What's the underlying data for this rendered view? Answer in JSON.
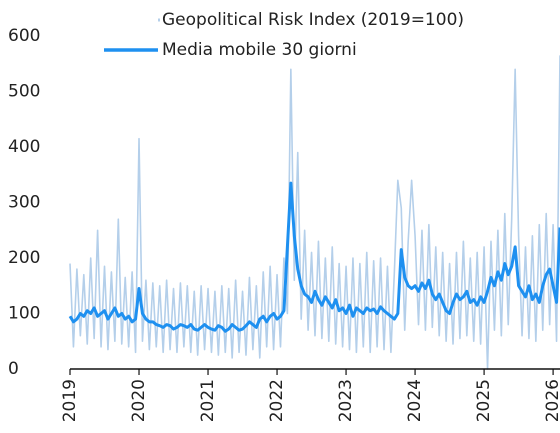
{
  "chart_data": {
    "type": "line",
    "x": [
      2019.0,
      2019.05,
      2019.1,
      2019.15,
      2019.2,
      2019.25,
      2019.3,
      2019.35,
      2019.4,
      2019.45,
      2019.5,
      2019.55,
      2019.6,
      2019.65,
      2019.7,
      2019.75,
      2019.8,
      2019.85,
      2019.9,
      2019.95,
      2020.0,
      2020.05,
      2020.1,
      2020.15,
      2020.2,
      2020.25,
      2020.3,
      2020.35,
      2020.4,
      2020.45,
      2020.5,
      2020.55,
      2020.6,
      2020.65,
      2020.7,
      2020.75,
      2020.8,
      2020.85,
      2020.9,
      2020.95,
      2021.0,
      2021.05,
      2021.1,
      2021.15,
      2021.2,
      2021.25,
      2021.3,
      2021.35,
      2021.4,
      2021.45,
      2021.5,
      2021.55,
      2021.6,
      2021.65,
      2021.7,
      2021.75,
      2021.8,
      2021.85,
      2021.9,
      2021.95,
      2022.0,
      2022.05,
      2022.1,
      2022.15,
      2022.2,
      2022.25,
      2022.3,
      2022.35,
      2022.4,
      2022.45,
      2022.5,
      2022.55,
      2022.6,
      2022.65,
      2022.7,
      2022.75,
      2022.8,
      2022.85,
      2022.9,
      2022.95,
      2023.0,
      2023.05,
      2023.1,
      2023.15,
      2023.2,
      2023.25,
      2023.3,
      2023.35,
      2023.4,
      2023.45,
      2023.5,
      2023.55,
      2023.6,
      2023.65,
      2023.7,
      2023.75,
      2023.8,
      2023.85,
      2023.9,
      2023.95,
      2024.0,
      2024.05,
      2024.1,
      2024.15,
      2024.2,
      2024.25,
      2024.3,
      2024.35,
      2024.4,
      2024.45,
      2024.5,
      2024.55,
      2024.6,
      2024.65,
      2024.7,
      2024.75,
      2024.8,
      2024.85,
      2024.9,
      2024.95,
      2025.0,
      2025.05,
      2025.1,
      2025.15,
      2025.2,
      2025.25,
      2025.3,
      2025.35,
      2025.4,
      2025.45,
      2025.5,
      2025.55,
      2025.6,
      2025.65,
      2025.7,
      2025.75,
      2025.8,
      2025.85,
      2025.9,
      2025.95,
      2026.0,
      2026.05,
      2026.1
    ],
    "series": [
      {
        "name": "Geopolitical Risk Index (2019=100)",
        "color": "#b4cfea",
        "values": [
          190,
          40,
          180,
          60,
          170,
          45,
          200,
          55,
          250,
          40,
          185,
          35,
          175,
          50,
          270,
          45,
          165,
          40,
          175,
          30,
          415,
          50,
          160,
          35,
          155,
          40,
          150,
          30,
          160,
          35,
          145,
          30,
          155,
          40,
          150,
          30,
          140,
          25,
          150,
          35,
          145,
          30,
          140,
          25,
          150,
          30,
          145,
          20,
          160,
          30,
          140,
          25,
          165,
          35,
          150,
          20,
          175,
          40,
          185,
          35,
          170,
          40,
          200,
          100,
          540,
          160,
          390,
          90,
          250,
          70,
          210,
          60,
          230,
          55,
          200,
          50,
          220,
          45,
          190,
          40,
          185,
          35,
          200,
          30,
          190,
          40,
          210,
          30,
          195,
          40,
          200,
          35,
          185,
          30,
          175,
          340,
          290,
          70,
          230,
          340,
          240,
          80,
          250,
          70,
          260,
          75,
          220,
          60,
          210,
          50,
          190,
          45,
          210,
          55,
          230,
          60,
          200,
          50,
          210,
          45,
          220,
          0,
          230,
          70,
          250,
          60,
          280,
          80,
          270,
          540,
          240,
          60,
          220,
          55,
          240,
          50,
          260,
          70,
          280,
          80,
          260,
          50,
          565
        ]
      },
      {
        "name": "Media mobile 30 giorni",
        "color": "#1e90f0",
        "values": [
          95,
          85,
          90,
          100,
          95,
          105,
          100,
          110,
          95,
          100,
          105,
          90,
          100,
          110,
          95,
          100,
          90,
          95,
          85,
          90,
          145,
          100,
          90,
          85,
          85,
          80,
          78,
          75,
          80,
          78,
          72,
          75,
          80,
          78,
          75,
          80,
          72,
          70,
          75,
          80,
          75,
          72,
          70,
          78,
          75,
          68,
          72,
          80,
          75,
          70,
          72,
          78,
          85,
          80,
          75,
          90,
          95,
          85,
          95,
          100,
          90,
          95,
          105,
          220,
          335,
          240,
          180,
          150,
          135,
          130,
          120,
          140,
          125,
          115,
          130,
          120,
          110,
          125,
          105,
          110,
          100,
          115,
          95,
          110,
          105,
          100,
          110,
          105,
          108,
          100,
          112,
          105,
          100,
          95,
          90,
          100,
          215,
          165,
          150,
          145,
          150,
          140,
          155,
          145,
          160,
          135,
          125,
          135,
          120,
          105,
          100,
          120,
          135,
          125,
          130,
          140,
          120,
          125,
          115,
          130,
          120,
          140,
          165,
          150,
          175,
          160,
          190,
          170,
          185,
          220,
          150,
          140,
          130,
          150,
          125,
          135,
          120,
          150,
          170,
          180,
          150,
          120,
          255
        ]
      }
    ],
    "xlim": [
      2019,
      2026.1
    ],
    "xticks": [
      2019,
      2020,
      2021,
      2022,
      2023,
      2024,
      2025,
      2026
    ],
    "ylim": [
      0,
      600
    ],
    "yticks": [
      0,
      100,
      200,
      300,
      400,
      500,
      600
    ]
  }
}
